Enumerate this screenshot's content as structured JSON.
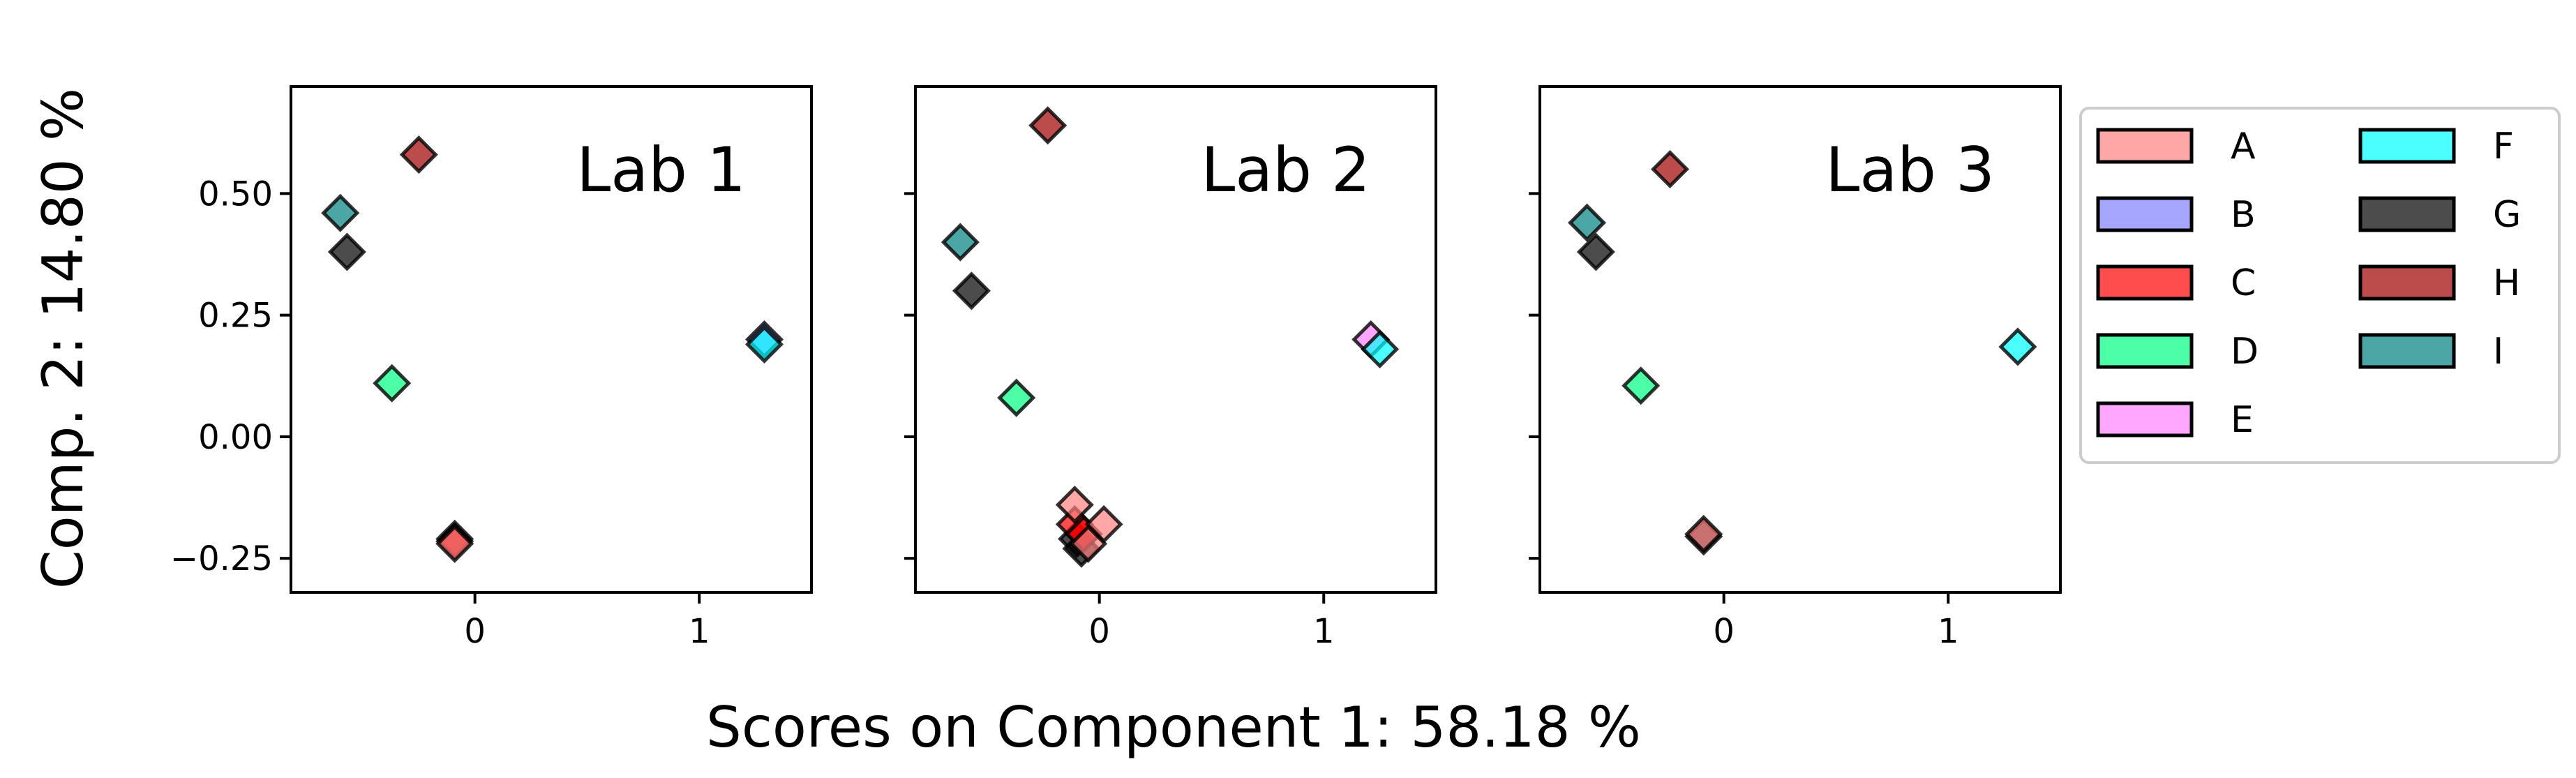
{
  "chart_data": {
    "type": "scatter",
    "marker": "diamond",
    "marker_alpha": 0.7,
    "xlabel": "Scores on Component 1: 58.18 %",
    "ylabel": "Comp. 2: 14.80 %",
    "xlim": [
      -0.82,
      1.5
    ],
    "ylim": [
      -0.32,
      0.72
    ],
    "xticks": [
      0,
      1
    ],
    "yticks": [
      -0.25,
      0.0,
      0.25,
      0.5
    ],
    "ytick_labels": [
      "−0.25",
      "0.00",
      "0.25",
      "0.50"
    ],
    "xtick_labels": [
      "0",
      "1"
    ],
    "grid": false,
    "legend": {
      "placement": "right",
      "columns": 2,
      "entries": [
        {
          "name": "A",
          "color": "#ff8080"
        },
        {
          "name": "B",
          "color": "#8080ff"
        },
        {
          "name": "C",
          "color": "#ff0000"
        },
        {
          "name": "D",
          "color": "#00ff80"
        },
        {
          "name": "E",
          "color": "#ff80ff"
        },
        {
          "name": "F",
          "color": "#00ffff"
        },
        {
          "name": "G",
          "color": "#000000"
        },
        {
          "name": "H",
          "color": "#a00000"
        },
        {
          "name": "I",
          "color": "#008080"
        }
      ]
    },
    "panels": [
      {
        "title": "Lab 1",
        "points": [
          {
            "series": "H",
            "x": -0.25,
            "y": 0.58
          },
          {
            "series": "I",
            "x": -0.6,
            "y": 0.46
          },
          {
            "series": "G",
            "x": -0.57,
            "y": 0.38
          },
          {
            "series": "D",
            "x": -0.37,
            "y": 0.11
          },
          {
            "series": "B",
            "x": 1.29,
            "y": 0.2
          },
          {
            "series": "F",
            "x": 1.29,
            "y": 0.19
          },
          {
            "series": "G",
            "x": -0.09,
            "y": -0.21
          },
          {
            "series": "C",
            "x": -0.09,
            "y": -0.215
          },
          {
            "series": "A",
            "x": -0.09,
            "y": -0.22
          }
        ]
      },
      {
        "title": "Lab 2",
        "points": [
          {
            "series": "H",
            "x": -0.23,
            "y": 0.64
          },
          {
            "series": "I",
            "x": -0.62,
            "y": 0.4
          },
          {
            "series": "G",
            "x": -0.57,
            "y": 0.3
          },
          {
            "series": "D",
            "x": -0.37,
            "y": 0.08
          },
          {
            "series": "E",
            "x": 1.21,
            "y": 0.2
          },
          {
            "series": "F",
            "x": 1.25,
            "y": 0.18
          },
          {
            "series": "G",
            "x": -0.1,
            "y": -0.21
          },
          {
            "series": "G",
            "x": -0.08,
            "y": -0.23
          },
          {
            "series": "C",
            "x": -0.11,
            "y": -0.18
          },
          {
            "series": "C",
            "x": -0.07,
            "y": -0.2
          },
          {
            "series": "A",
            "x": -0.11,
            "y": -0.14
          },
          {
            "series": "A",
            "x": 0.02,
            "y": -0.18
          },
          {
            "series": "A",
            "x": -0.05,
            "y": -0.22
          }
        ]
      },
      {
        "title": "Lab 3",
        "points": [
          {
            "series": "H",
            "x": -0.24,
            "y": 0.55
          },
          {
            "series": "I",
            "x": -0.61,
            "y": 0.44
          },
          {
            "series": "G",
            "x": -0.57,
            "y": 0.38
          },
          {
            "series": "D",
            "x": -0.37,
            "y": 0.105
          },
          {
            "series": "F",
            "x": 1.31,
            "y": 0.185
          },
          {
            "series": "G",
            "x": -0.09,
            "y": -0.205
          },
          {
            "series": "A",
            "x": -0.09,
            "y": -0.2
          }
        ]
      }
    ]
  }
}
